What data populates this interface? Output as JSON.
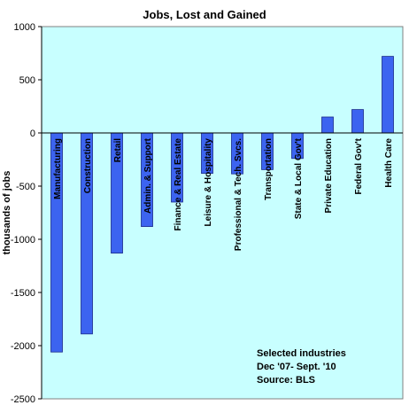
{
  "chart_data": {
    "type": "bar",
    "title": "Jobs, Lost and Gained",
    "ylabel": "thousands of jobs",
    "xlabel": "",
    "ylim": [
      -2500,
      1000
    ],
    "yticks": [
      1000,
      500,
      0,
      -500,
      -1000,
      -1500,
      -2000,
      -2500
    ],
    "categories": [
      "Manufacturing",
      "Construction",
      "Retail",
      "Admin. & Support",
      "Finance & Real Estate",
      "Leisure & Hospitality",
      "Professional & Tech. Svcs.",
      "Transportation",
      "State & Local Gov't",
      "Private Education",
      "Federal Gov't",
      "Health Care"
    ],
    "values": [
      -2060,
      -1890,
      -1130,
      -880,
      -650,
      -380,
      -385,
      -345,
      -240,
      150,
      220,
      720
    ],
    "annotation": [
      "Selected industries",
      "Dec '07- Sept. '10",
      "Source: BLS"
    ],
    "colors": {
      "bar": "#3c64f0",
      "bar_edge": "#1a2a8a",
      "plot_bg": "#c8ffff",
      "axis": "#000000"
    },
    "grid": false,
    "legend": "none"
  }
}
